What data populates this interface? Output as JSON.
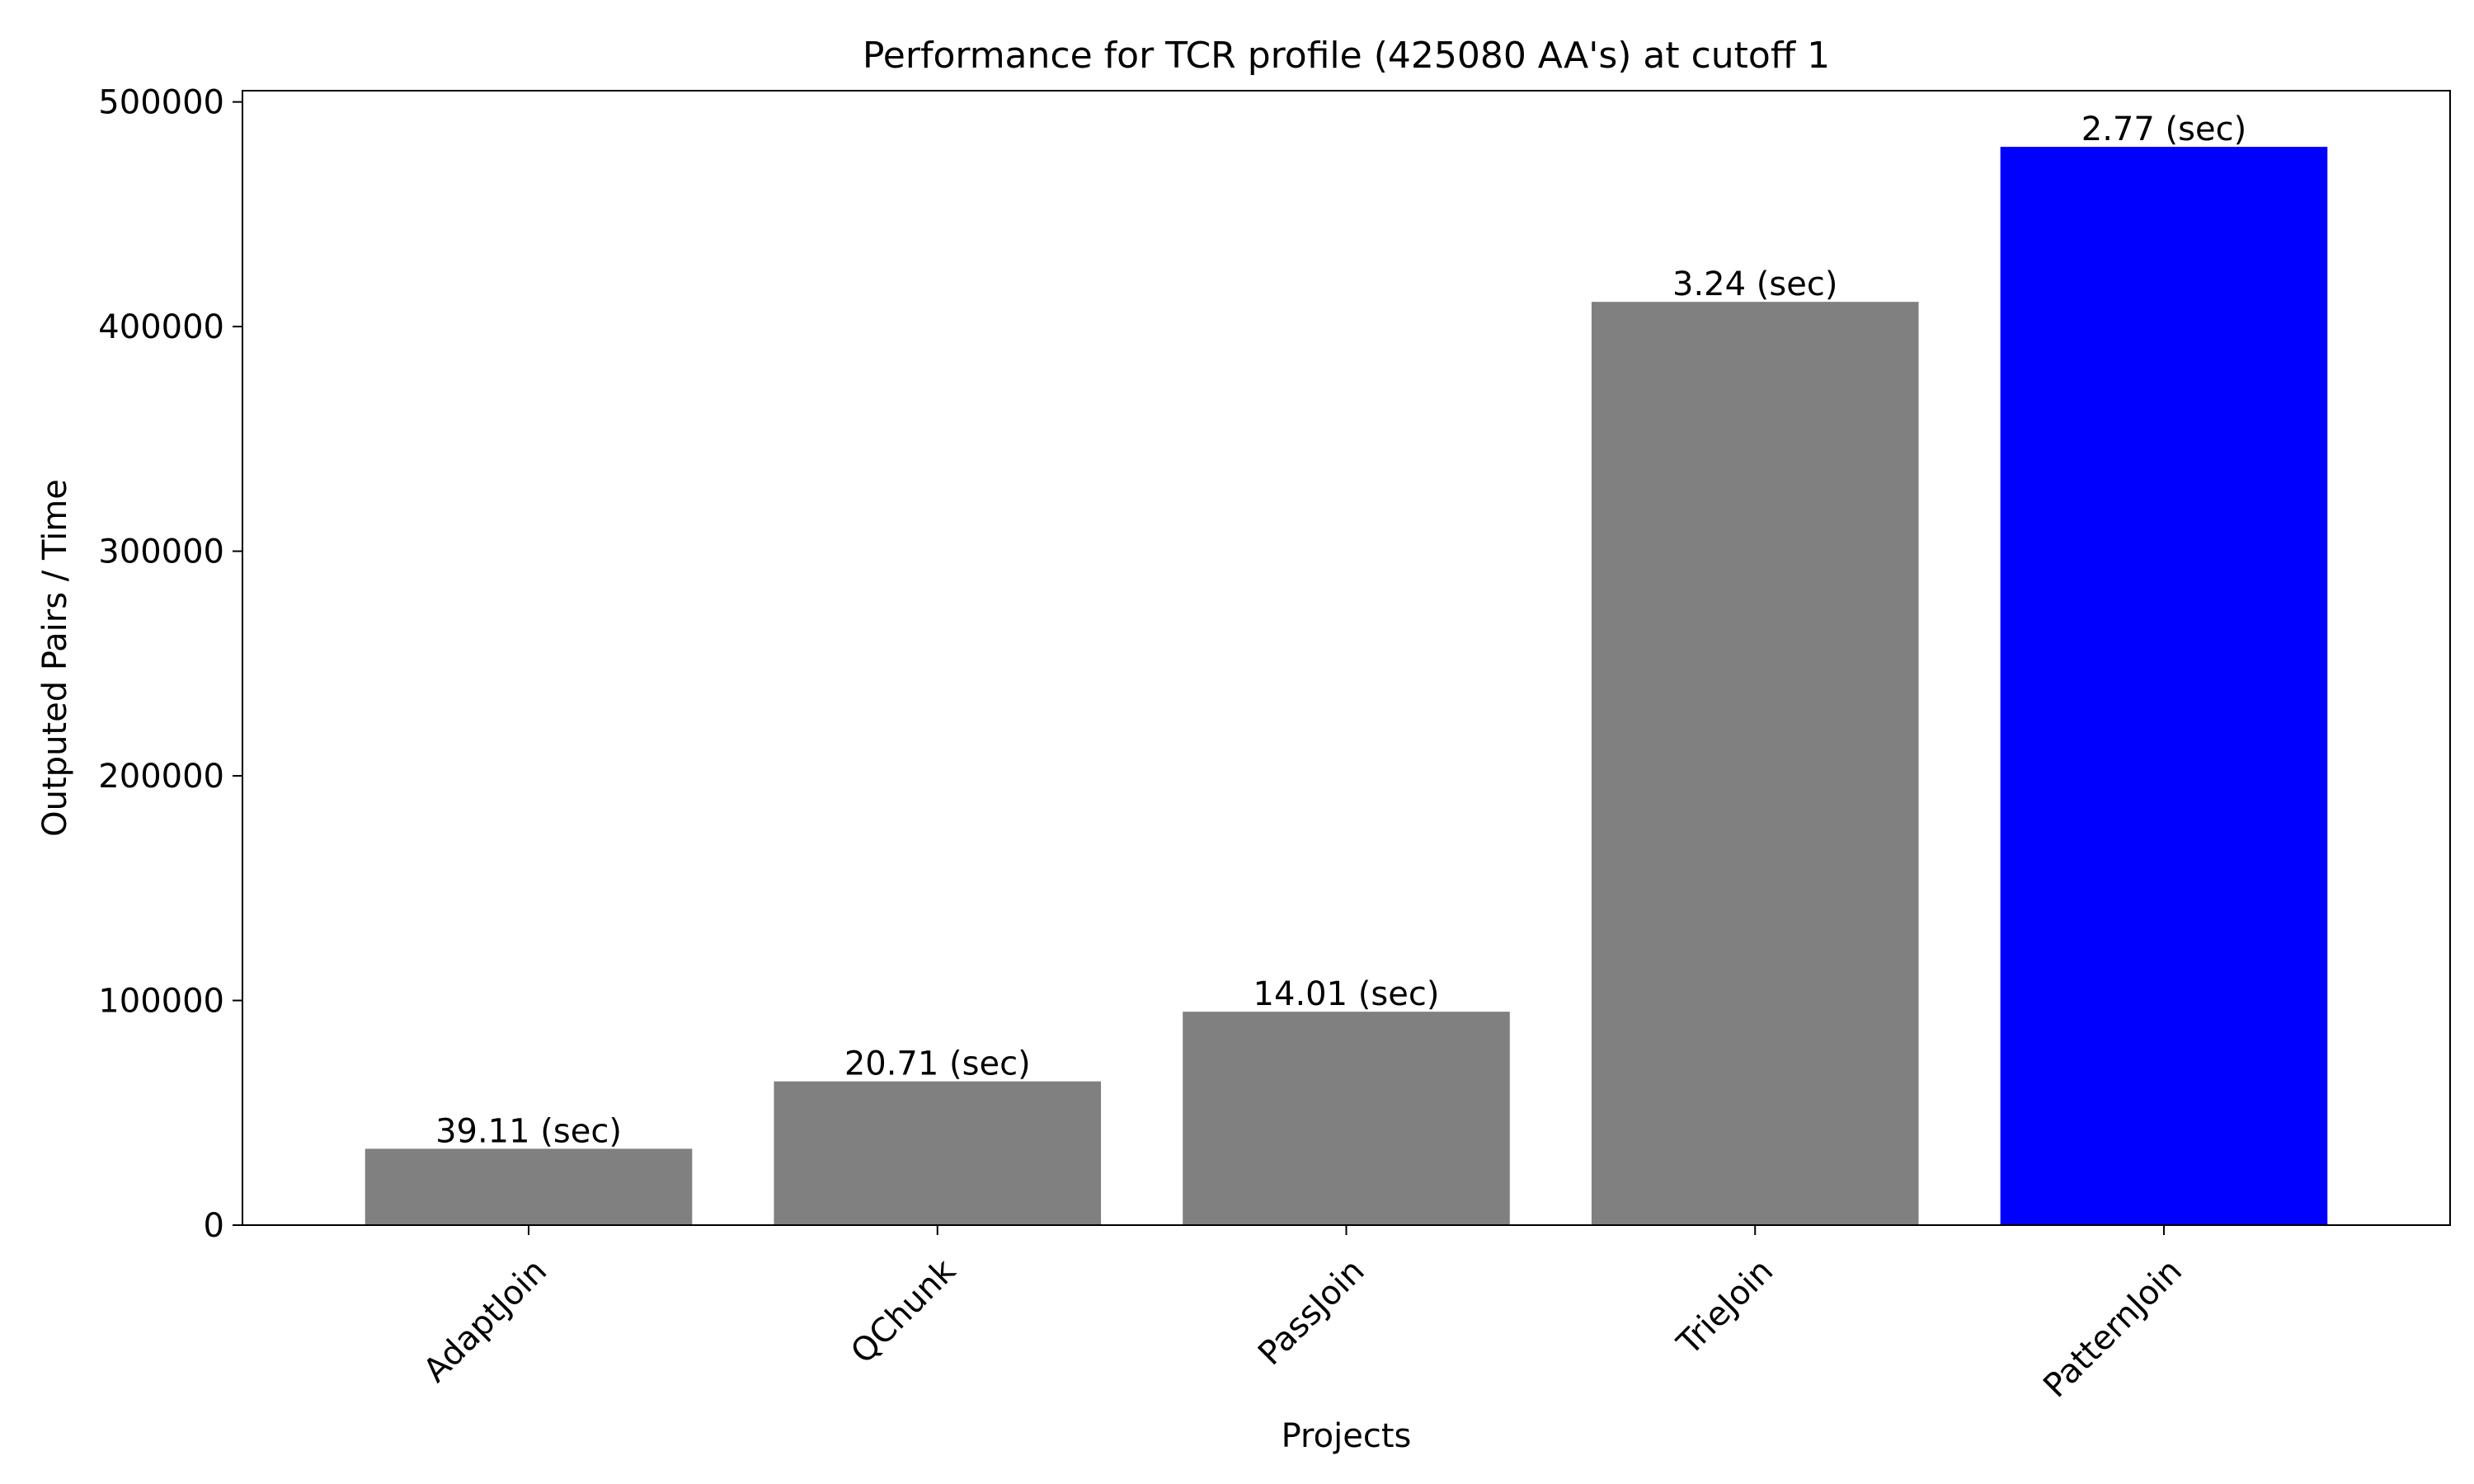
{
  "chart_data": {
    "type": "bar",
    "title": "Performance for TCR profile (425080 AA's) at cutoff 1",
    "xlabel": "Projects",
    "ylabel": "Outputed Pairs / Time",
    "categories": [
      "AdaptJoin",
      "QChunk",
      "PassJoin",
      "TrieJoin",
      "PatternJoin"
    ],
    "values": [
      34000,
      64000,
      95000,
      411000,
      480000
    ],
    "bar_labels": [
      "39.11 (sec)",
      "20.71 (sec)",
      "14.01 (sec)",
      "3.24 (sec)",
      "2.77 (sec)"
    ],
    "bar_colors": [
      "#808080",
      "#808080",
      "#808080",
      "#808080",
      "#0000ff"
    ],
    "ylim": [
      0,
      505000
    ],
    "yticks": [
      0,
      100000,
      200000,
      300000,
      400000,
      500000
    ],
    "grid": false,
    "legend": "none"
  }
}
